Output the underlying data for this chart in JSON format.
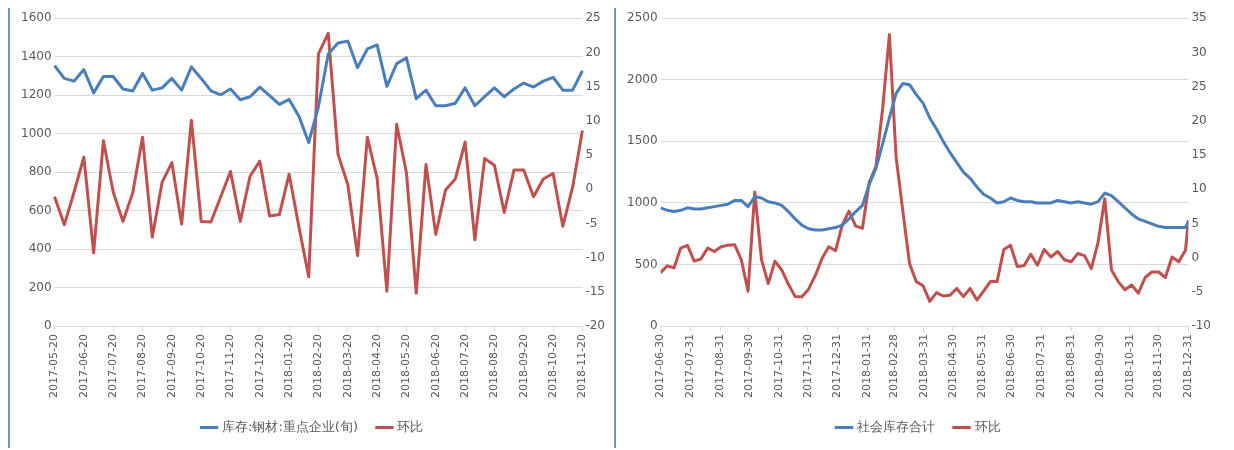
{
  "chart_data": [
    {
      "type": "line",
      "categories": [
        "2017-05-20",
        null,
        null,
        "2017-06-20",
        null,
        null,
        "2017-07-20",
        null,
        null,
        "2017-08-20",
        null,
        null,
        "2017-09-20",
        null,
        null,
        "2017-10-20",
        null,
        null,
        "2017-11-20",
        null,
        null,
        "2017-12-20",
        null,
        null,
        "2018-01-20",
        null,
        null,
        "2018-02-20",
        null,
        null,
        "2018-03-20",
        null,
        null,
        "2018-04-20",
        null,
        null,
        "2018-05-20",
        null,
        null,
        "2018-06-20",
        null,
        null,
        "2018-07-20",
        null,
        null,
        "2018-08-20",
        null,
        null,
        "2018-09-20",
        null,
        null,
        "2018-10-20",
        null,
        null,
        "2018-11-20"
      ],
      "series": [
        {
          "name": "库存:钢材:重点企业(旬)",
          "color": "#4a7ebb",
          "values": [
            1354,
            1287,
            1273,
            1333,
            1212,
            1297,
            1297,
            1232,
            1222,
            1313,
            1226,
            1238,
            1287,
            1226,
            1347,
            1287,
            1222,
            1202,
            1232,
            1176,
            1192,
            1242,
            1198,
            1152,
            1178,
            1091,
            954,
            1141,
            1414,
            1471,
            1481,
            1343,
            1440,
            1461,
            1246,
            1364,
            1394,
            1182,
            1226,
            1145,
            1145,
            1158,
            1238,
            1145,
            1192,
            1238,
            1192,
            1232,
            1263,
            1242,
            1273,
            1293,
            1226,
            1226,
            1327
          ]
        },
        {
          "name": "环比",
          "color": "#c0504d",
          "axis": "y2",
          "values": [
            -1.1,
            -5.2,
            -0.4,
            4.7,
            -9.3,
            7.1,
            -0.4,
            -4.7,
            -0.5,
            7.6,
            -7.0,
            1.0,
            3.9,
            -5.1,
            10.1,
            -4.7,
            -4.8,
            -1.1,
            2.6,
            -4.7,
            1.9,
            4.1,
            -3.9,
            -3.7,
            2.2,
            -5.5,
            -12.8,
            19.8,
            22.8,
            5.1,
            0.7,
            -9.7,
            7.6,
            1.6,
            -14.9,
            9.5,
            2.4,
            -15.2,
            3.6,
            -6.6,
            -0.1,
            1.5,
            6.9,
            -7.4,
            4.5,
            3.5,
            -3.4,
            2.8,
            2.8,
            -1.1,
            1.5,
            2.3,
            -5.4,
            0.3,
            8.6
          ]
        }
      ],
      "ylim": [
        0,
        1600
      ],
      "yticks": [
        0,
        200,
        400,
        600,
        800,
        1000,
        1200,
        1400,
        1600
      ],
      "y2lim": [
        -20,
        25
      ],
      "y2ticks": [
        -20,
        -15,
        -10,
        -5,
        0,
        5,
        10,
        15,
        20,
        25
      ],
      "grid": "y",
      "legend": "bottom"
    },
    {
      "type": "line",
      "x": [
        "2017-06-30",
        "2017-07-07",
        "2017-07-14",
        "2017-07-21",
        "2017-07-28",
        "2017-08-04",
        "2017-08-11",
        "2017-08-18",
        "2017-08-25",
        "2017-09-01",
        "2017-09-08",
        "2017-09-15",
        "2017-09-22",
        "2017-09-29",
        "2017-10-06",
        "2017-10-13",
        "2017-10-20",
        "2017-10-27",
        "2017-11-03",
        "2017-11-10",
        "2017-11-17",
        "2017-11-24",
        "2017-12-01",
        "2017-12-08",
        "2017-12-15",
        "2017-12-22",
        "2017-12-29",
        "2018-01-05",
        "2018-01-12",
        "2018-01-19",
        "2018-01-26",
        "2018-02-02",
        "2018-02-09",
        "2018-02-16",
        "2018-02-23",
        "2018-03-02",
        "2018-03-09",
        "2018-03-16",
        "2018-03-23",
        "2018-03-30",
        "2018-04-06",
        "2018-04-13",
        "2018-04-20",
        "2018-04-27",
        "2018-05-04",
        "2018-05-11",
        "2018-05-18",
        "2018-05-25",
        "2018-06-01",
        "2018-06-08",
        "2018-06-15",
        "2018-06-22",
        "2018-06-29",
        "2018-07-06",
        "2018-07-13",
        "2018-07-20",
        "2018-07-27",
        "2018-08-03",
        "2018-08-10",
        "2018-08-17",
        "2018-08-24",
        "2018-08-31",
        "2018-09-07",
        "2018-09-14",
        "2018-09-21",
        "2018-09-28",
        "2018-10-05",
        "2018-10-12",
        "2018-10-19",
        "2018-10-26",
        "2018-11-02",
        "2018-11-09",
        "2018-11-16",
        "2018-11-23",
        "2018-11-30",
        "2018-12-07",
        "2018-12-14",
        "2018-12-21",
        "2018-12-28",
        "2018-12-31"
      ],
      "series": [
        {
          "name": "社会库存合计",
          "color": "#4a7ebb",
          "values": [
            960,
            940,
            930,
            940,
            960,
            950,
            950,
            960,
            970,
            980,
            990,
            1020,
            1020,
            970,
            1050,
            1040,
            1010,
            1000,
            980,
            930,
            870,
            820,
            790,
            780,
            780,
            790,
            800,
            820,
            870,
            930,
            980,
            1150,
            1280,
            1480,
            1690,
            1890,
            1970,
            1960,
            1880,
            1810,
            1690,
            1600,
            1500,
            1410,
            1330,
            1250,
            1200,
            1130,
            1070,
            1040,
            1000,
            1010,
            1040,
            1020,
            1010,
            1010,
            1000,
            1000,
            1000,
            1020,
            1010,
            1000,
            1010,
            1000,
            990,
            1010,
            1080,
            1060,
            1010,
            960,
            910,
            870,
            850,
            830,
            810,
            800,
            800,
            800,
            800,
            850
          ]
        },
        {
          "name": "环比",
          "color": "#c0504d",
          "axis": "y2",
          "values": [
            -2.2,
            -1.2,
            -1.5,
            1.4,
            1.8,
            -0.5,
            -0.2,
            1.4,
            0.9,
            1.6,
            1.8,
            1.9,
            -0.3,
            -4.9,
            9.6,
            -0.3,
            -3.8,
            -0.5,
            -1.8,
            -3.9,
            -5.7,
            -5.7,
            -4.6,
            -2.6,
            -0.1,
            1.6,
            1.0,
            4.8,
            6.8,
            4.6,
            4.3,
            11.0,
            13.3,
            21.8,
            32.6,
            14.7,
            6.8,
            -0.9,
            -3.5,
            -4.1,
            -6.4,
            -5.1,
            -5.6,
            -5.5,
            -4.5,
            -5.7,
            -4.5,
            -6.2,
            -4.9,
            -3.5,
            -3.5,
            1.2,
            1.8,
            -1.3,
            -1.2,
            0.5,
            -1.1,
            1.2,
            0.1,
            0.9,
            -0.3,
            -0.6,
            0.6,
            0.3,
            -1.6,
            2.2,
            8.6,
            -1.8,
            -3.5,
            -4.7,
            -4.0,
            -5.2,
            -2.9,
            -2.1,
            -2.1,
            -2.9,
            0.1,
            -0.6,
            1.1,
            5.5
          ]
        }
      ],
      "xlim": [
        "2017-06-30",
        "2018-12-31"
      ],
      "xticks": [
        "2017-06-30",
        "2017-07-31",
        "2017-08-31",
        "2017-09-30",
        "2017-10-31",
        "2017-11-30",
        "2017-12-31",
        "2018-01-31",
        "2018-02-28",
        "2018-03-31",
        "2018-04-30",
        "2018-05-31",
        "2018-06-30",
        "2018-07-31",
        "2018-08-31",
        "2018-09-30",
        "2018-10-31",
        "2018-11-30",
        "2018-12-31"
      ],
      "ylim": [
        0,
        2500
      ],
      "yticks": [
        0,
        500,
        1000,
        1500,
        2000,
        2500
      ],
      "y2lim": [
        -10,
        35
      ],
      "y2ticks": [
        -10,
        -5,
        0,
        5,
        10,
        15,
        20,
        25,
        30,
        35
      ],
      "grid": "y",
      "legend": "bottom"
    }
  ]
}
